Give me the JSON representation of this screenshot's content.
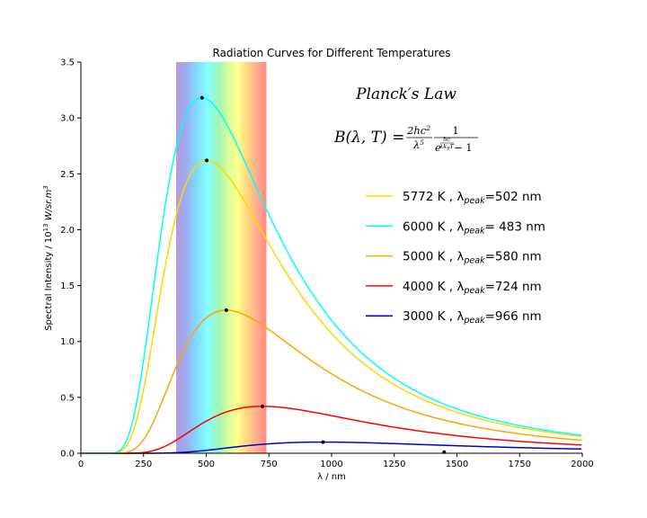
{
  "chart_data": {
    "type": "line",
    "title": "Radiation Curves for Different Temperatures",
    "xlabel": "λ / nm",
    "ylabel": "Spectral Intensity / 10",
    "ylabel_exp": "13",
    "ylabel_unit": " W/sr.m",
    "ylabel_unit_exp": "3",
    "xlim": [
      0,
      2000
    ],
    "ylim": [
      0,
      3.5
    ],
    "xticks": [
      "0",
      "250",
      "500",
      "750",
      "1000",
      "1250",
      "1500",
      "1750",
      "2000"
    ],
    "yticks": [
      "0.0",
      "0.5",
      "1.0",
      "1.5",
      "2.0",
      "2.5",
      "3.0",
      "3.5"
    ],
    "grid": false,
    "legend_position": "right",
    "visible_band_nm": [
      380,
      740
    ],
    "annotations": {
      "law_title_main": "Planck",
      "law_title_prime": "′",
      "law_title_rest": "s Law",
      "formula_lhs": "B(λ, T) = ",
      "formula_num": "2hc",
      "formula_num_exp": "2",
      "formula_den": "λ",
      "formula_den_exp": "5",
      "formula_one": "1",
      "formula_e": "e",
      "formula_exp_num": "hc",
      "formula_exp_den": "λk",
      "formula_exp_den_sub": "B",
      "formula_exp_den_T": "T",
      "formula_minus": " − 1"
    },
    "series": [
      {
        "temp": "5772",
        "peak_text": "=502 nm",
        "color": "#FFD700",
        "T": 5772,
        "peak_nm": 502,
        "peak_value": 2.62
      },
      {
        "temp": "6000",
        "peak_text": "= 483 nm",
        "color": "#00FFFF",
        "T": 6000,
        "peak_nm": 483,
        "peak_value": 3.18
      },
      {
        "temp": "5000",
        "peak_text": "=580 nm",
        "color": "#FFA500",
        "T": 5000,
        "peak_nm": 580,
        "peak_value": 1.28
      },
      {
        "temp": "4000",
        "peak_text": "=724 nm",
        "color": "#FF0000",
        "T": 4000,
        "peak_nm": 724,
        "peak_value": 0.42
      },
      {
        "temp": "3000",
        "peak_text": "=966 nm",
        "color": "#0000CC",
        "T": 3000,
        "peak_nm": 966,
        "peak_value": 0.1
      }
    ],
    "legend_unit": " K , λ",
    "legend_sub": "peak",
    "extra_point": {
      "x": 1449,
      "y": 0.01
    }
  }
}
